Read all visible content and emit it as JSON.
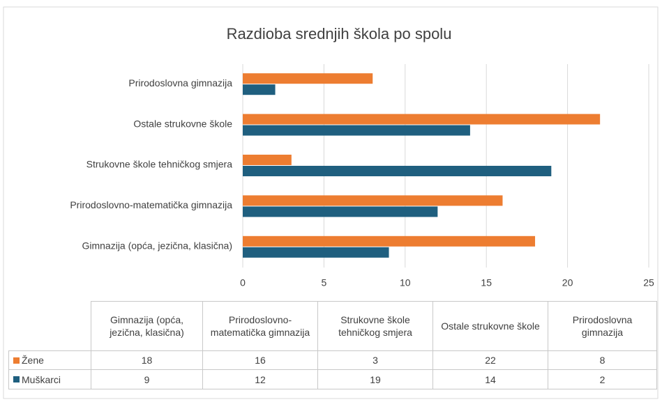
{
  "chart_data": {
    "type": "bar",
    "orientation": "horizontal",
    "title": "Razdioba srednjih škola po spolu",
    "categories": [
      "Gimnazija (opća, jezična, klasična)",
      "Prirodoslovno-matematička gimnazija",
      "Strukovne škole tehničkog smjera",
      "Ostale strukovne škole",
      "Prirodoslovna gimnazija"
    ],
    "series": [
      {
        "name": "Žene",
        "color": "#ED7D31",
        "values": [
          18,
          16,
          3,
          22,
          8
        ]
      },
      {
        "name": "Muškarci",
        "color": "#1F5F7F",
        "values": [
          9,
          12,
          19,
          14,
          2
        ]
      }
    ],
    "xlim": [
      0,
      25
    ],
    "xticks": [
      0,
      5,
      10,
      15,
      20,
      25
    ],
    "grid": true,
    "data_table": true
  }
}
